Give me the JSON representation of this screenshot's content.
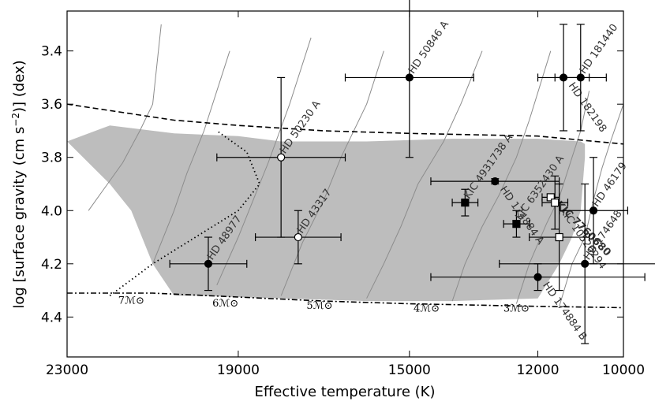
{
  "chart_data": {
    "type": "scatter",
    "xlabel": "Effective temperature (K)",
    "ylabel_parts": [
      "log [surface gravity (cm s",
      "−2",
      ")] (dex)"
    ],
    "xlim": [
      23000,
      10000
    ],
    "ylim": [
      4.55,
      3.25
    ],
    "x_ticks": [
      {
        "value": 23000,
        "label": "23000"
      },
      {
        "value": 19000,
        "label": "19000"
      },
      {
        "value": 15000,
        "label": "15000"
      },
      {
        "value": 12000,
        "label": "12000"
      },
      {
        "value": 10000,
        "label": "10000"
      }
    ],
    "y_ticks": [
      {
        "value": 3.4,
        "label": "3.4"
      },
      {
        "value": 3.6,
        "label": "3.6"
      },
      {
        "value": 3.8,
        "label": "3.8"
      },
      {
        "value": 4.0,
        "label": "4.0"
      },
      {
        "value": 4.2,
        "label": "4.2"
      },
      {
        "value": 4.4,
        "label": "4.4"
      }
    ],
    "instability_region": [
      [
        23000,
        3.74
      ],
      [
        22000,
        3.68
      ],
      [
        20500,
        3.71
      ],
      [
        19000,
        3.72
      ],
      [
        18000,
        3.74
      ],
      [
        16000,
        3.74
      ],
      [
        14000,
        3.73
      ],
      [
        12000,
        3.73
      ],
      [
        11000,
        3.74
      ],
      [
        10900,
        3.75
      ],
      [
        10900,
        3.8
      ],
      [
        11000,
        4.0
      ],
      [
        11200,
        4.1
      ],
      [
        11500,
        4.2
      ],
      [
        12000,
        4.33
      ],
      [
        14000,
        4.34
      ],
      [
        16000,
        4.34
      ],
      [
        18000,
        4.33
      ],
      [
        20000,
        4.32
      ],
      [
        20500,
        4.32
      ],
      [
        21000,
        4.2
      ],
      [
        21500,
        4.0
      ],
      [
        22000,
        3.9
      ],
      [
        23000,
        3.74
      ]
    ],
    "boundary_lines": {
      "dashed_upper": [
        [
          23000,
          3.6
        ],
        [
          20500,
          3.66
        ],
        [
          19000,
          3.68
        ],
        [
          17000,
          3.7
        ],
        [
          15000,
          3.71
        ],
        [
          12000,
          3.72
        ],
        [
          10000,
          3.75
        ]
      ],
      "dash_dot_lower": [
        [
          23000,
          4.31
        ],
        [
          21000,
          4.31
        ],
        [
          19000,
          4.325
        ],
        [
          17000,
          4.34
        ],
        [
          15000,
          4.35
        ],
        [
          12000,
          4.36
        ],
        [
          10000,
          4.365
        ]
      ],
      "dotted": [
        [
          22000,
          4.32
        ],
        [
          21000,
          4.2
        ],
        [
          20500,
          4.15
        ],
        [
          19000,
          4.0
        ],
        [
          18500,
          3.9
        ],
        [
          18800,
          3.78
        ],
        [
          19500,
          3.7
        ]
      ]
    },
    "tracks": [
      [
        [
          22500,
          4.0
        ],
        [
          21700,
          3.82
        ],
        [
          21300,
          3.7
        ],
        [
          21000,
          3.6
        ],
        [
          20800,
          3.3
        ]
      ],
      [
        [
          21000,
          4.2
        ],
        [
          20500,
          4.0
        ],
        [
          20200,
          3.86
        ],
        [
          19800,
          3.7
        ],
        [
          19200,
          3.4
        ]
      ],
      [
        [
          19500,
          4.28
        ],
        [
          19000,
          4.1
        ],
        [
          18600,
          3.94
        ],
        [
          18300,
          3.82
        ],
        [
          17800,
          3.6
        ],
        [
          17300,
          3.35
        ]
      ],
      [
        [
          18000,
          4.32
        ],
        [
          17500,
          4.12
        ],
        [
          17000,
          3.96
        ],
        [
          16600,
          3.8
        ],
        [
          16000,
          3.6
        ],
        [
          15600,
          3.4
        ]
      ],
      [
        [
          16000,
          4.33
        ],
        [
          15600,
          4.2
        ],
        [
          15200,
          4.06
        ],
        [
          14800,
          3.9
        ],
        [
          14200,
          3.74
        ],
        [
          13800,
          3.6
        ],
        [
          13300,
          3.4
        ]
      ],
      [
        [
          14000,
          4.34
        ],
        [
          13700,
          4.2
        ],
        [
          13300,
          4.06
        ],
        [
          12900,
          3.94
        ],
        [
          12500,
          3.8
        ],
        [
          12200,
          3.66
        ],
        [
          11700,
          3.4
        ]
      ],
      [
        [
          12500,
          4.35
        ],
        [
          12200,
          4.2
        ],
        [
          11800,
          4.05
        ],
        [
          11500,
          3.95
        ],
        [
          11200,
          3.8
        ],
        [
          11000,
          3.7
        ],
        [
          10800,
          3.55
        ]
      ],
      [
        [
          11500,
          4.36
        ],
        [
          11200,
          4.2
        ],
        [
          10900,
          4.1
        ],
        [
          10700,
          3.96
        ],
        [
          10500,
          3.84
        ],
        [
          10300,
          3.74
        ],
        [
          10000,
          3.6
        ]
      ]
    ],
    "mass_labels": [
      {
        "x": 21500,
        "y": 4.35,
        "label": "7ℳ⊙"
      },
      {
        "x": 19300,
        "y": 4.36,
        "label": "6ℳ⊙"
      },
      {
        "x": 17100,
        "y": 4.37,
        "label": "5ℳ⊙"
      },
      {
        "x": 14600,
        "y": 4.38,
        "label": "4ℳ⊙"
      },
      {
        "x": 12500,
        "y": 4.38,
        "label": "3ℳ⊙"
      }
    ],
    "stars": [
      {
        "name": "HD 50846 A",
        "x": 15000,
        "y": 3.5,
        "xerr": 1500,
        "yerr": 0.3,
        "marker": "circle",
        "fill": "filled",
        "label_angle": -55,
        "bold": false
      },
      {
        "name": "HD 182198",
        "x": 11400,
        "y": 3.5,
        "xerr": 600,
        "yerr": 0.2,
        "marker": "circle",
        "fill": "filled",
        "label_angle": 55,
        "bold": false
      },
      {
        "name": "HD 181440",
        "x": 11000,
        "y": 3.5,
        "xerr": 600,
        "yerr": 0.2,
        "marker": "circle",
        "fill": "filled",
        "label_angle": -55,
        "bold": false
      },
      {
        "name": "HD 50230 A",
        "x": 18000,
        "y": 3.8,
        "xerr": 1500,
        "yerr": 0.3,
        "marker": "circle",
        "fill": "open",
        "label_angle": -55,
        "bold": false
      },
      {
        "name": "HD 174884 A",
        "x": 13000,
        "y": 3.89,
        "xerr": 1500,
        "yerr": 0.01,
        "marker": "circle",
        "fill": "filled",
        "label_angle": 55,
        "bold": false
      },
      {
        "name": "KIC 7760680",
        "x": 11700,
        "y": 3.95,
        "xerr": 200,
        "yerr": 0.01,
        "marker": "square",
        "fill": "open",
        "label_angle": 45,
        "bold": true
      },
      {
        "name": "KIC 10526294",
        "x": 11600,
        "y": 3.97,
        "xerr": 300,
        "yerr": 0.1,
        "marker": "square",
        "fill": "open",
        "label_angle": 55,
        "bold": false
      },
      {
        "name": "HD 46179",
        "x": 10700,
        "y": 4.0,
        "xerr": 800,
        "yerr": 0.2,
        "marker": "circle",
        "fill": "filled",
        "label_angle": -55,
        "bold": false
      },
      {
        "name": "KIC 4931738 A",
        "x": 13700,
        "y": 3.97,
        "xerr": 300,
        "yerr": 0.05,
        "marker": "square",
        "fill": "filled",
        "label_angle": -55,
        "bold": false
      },
      {
        "name": "KIC 6352430 A",
        "x": 12500,
        "y": 4.05,
        "xerr": 300,
        "yerr": 0.05,
        "marker": "square",
        "fill": "filled",
        "label_angle": -55,
        "bold": false
      },
      {
        "name": "HD 43317",
        "x": 17600,
        "y": 4.1,
        "xerr": 1000,
        "yerr": 0.1,
        "marker": "circle",
        "fill": "open",
        "label_angle": -55,
        "bold": false
      },
      {
        "name": "",
        "x": 11500,
        "y": 4.1,
        "xerr": 700,
        "yerr": 0.2,
        "marker": "square",
        "fill": "open",
        "label_angle": 0,
        "bold": false
      },
      {
        "name": "HD 48977",
        "x": 19700,
        "y": 4.2,
        "xerr": 900,
        "yerr": 0.1,
        "marker": "circle",
        "fill": "filled",
        "label_angle": -55,
        "bold": false
      },
      {
        "name": "HD 174648",
        "x": 10900,
        "y": 4.2,
        "xerr": 2000,
        "yerr": 0.3,
        "marker": "circle",
        "fill": "filled",
        "label_angle": -55,
        "bold": false
      },
      {
        "name": "HD 174884 B",
        "x": 12000,
        "y": 4.25,
        "xerr": 2500,
        "yerr": 0.05,
        "marker": "circle",
        "fill": "filled",
        "label_angle": 55,
        "bold": false
      }
    ]
  }
}
